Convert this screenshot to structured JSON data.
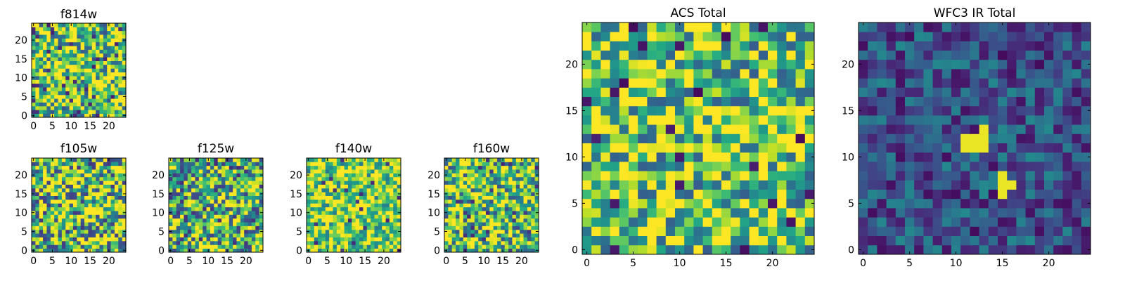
{
  "figure": {
    "colormap": "viridis"
  },
  "chart_data": [
    {
      "id": "f814w",
      "type": "heatmap",
      "title": "f814w",
      "grid": [
        25,
        25
      ],
      "xlim": [
        -0.5,
        24.5
      ],
      "ylim": [
        -0.5,
        24.5
      ],
      "xticks": [
        0,
        5,
        10,
        15,
        20
      ],
      "yticks": [
        0,
        5,
        10,
        15,
        20
      ],
      "xtick_labels": [
        "0",
        "5",
        "10",
        "15",
        "20"
      ],
      "ytick_labels": [
        "0",
        "5",
        "10",
        "15",
        "20"
      ],
      "pattern": {
        "seed": 11,
        "base": 0.75,
        "spread": 0.5,
        "dark_fraction": 0.05,
        "dark_value": 0.08,
        "hot_spots": []
      }
    },
    {
      "id": "f105w",
      "type": "heatmap",
      "title": "f105w",
      "grid": [
        25,
        25
      ],
      "xlim": [
        -0.5,
        24.5
      ],
      "ylim": [
        -0.5,
        24.5
      ],
      "xticks": [
        0,
        5,
        10,
        15,
        20
      ],
      "yticks": [
        0,
        5,
        10,
        15,
        20
      ],
      "xtick_labels": [
        "0",
        "5",
        "10",
        "15",
        "20"
      ],
      "ytick_labels": [
        "0",
        "5",
        "10",
        "15",
        "20"
      ],
      "pattern": {
        "seed": 23,
        "base": 0.72,
        "spread": 0.55,
        "dark_fraction": 0.04,
        "dark_value": 0.15,
        "hot_spots": []
      }
    },
    {
      "id": "f125w",
      "type": "heatmap",
      "title": "f125w",
      "grid": [
        25,
        25
      ],
      "xlim": [
        -0.5,
        24.5
      ],
      "ylim": [
        -0.5,
        24.5
      ],
      "xticks": [
        0,
        5,
        10,
        15,
        20
      ],
      "yticks": [
        0,
        5,
        10,
        15,
        20
      ],
      "xtick_labels": [
        "0",
        "5",
        "10",
        "15",
        "20"
      ],
      "ytick_labels": [
        "0",
        "5",
        "10",
        "15",
        "20"
      ],
      "pattern": {
        "seed": 37,
        "base": 0.62,
        "spread": 0.5,
        "dark_fraction": 0.04,
        "dark_value": 0.2,
        "hot_spots": []
      }
    },
    {
      "id": "f140w",
      "type": "heatmap",
      "title": "f140w",
      "grid": [
        25,
        25
      ],
      "xlim": [
        -0.5,
        24.5
      ],
      "ylim": [
        -0.5,
        24.5
      ],
      "xticks": [
        0,
        5,
        10,
        15,
        20
      ],
      "yticks": [
        0,
        5,
        10,
        15,
        20
      ],
      "xtick_labels": [
        "0",
        "5",
        "10",
        "15",
        "20"
      ],
      "ytick_labels": [
        "0",
        "5",
        "10",
        "15",
        "20"
      ],
      "pattern": {
        "seed": 41,
        "base": 0.8,
        "spread": 0.4,
        "dark_fraction": 0.03,
        "dark_value": 0.1,
        "hot_spots": []
      }
    },
    {
      "id": "f160w",
      "type": "heatmap",
      "title": "f160w",
      "grid": [
        25,
        25
      ],
      "xlim": [
        -0.5,
        24.5
      ],
      "ylim": [
        -0.5,
        24.5
      ],
      "xticks": [
        0,
        5,
        10,
        15,
        20
      ],
      "yticks": [
        0,
        5,
        10,
        15,
        20
      ],
      "xtick_labels": [
        "0",
        "5",
        "10",
        "15",
        "20"
      ],
      "ytick_labels": [
        "0",
        "5",
        "10",
        "15",
        "20"
      ],
      "pattern": {
        "seed": 53,
        "base": 0.74,
        "spread": 0.5,
        "dark_fraction": 0.05,
        "dark_value": 0.1,
        "hot_spots": []
      }
    },
    {
      "id": "acs_total",
      "type": "heatmap",
      "title": "ACS Total",
      "grid": [
        25,
        25
      ],
      "xlim": [
        -0.5,
        24.5
      ],
      "ylim": [
        -0.5,
        24.5
      ],
      "xticks": [
        0,
        5,
        10,
        15,
        20
      ],
      "yticks": [
        0,
        5,
        10,
        15,
        20
      ],
      "xtick_labels": [
        "0",
        "5",
        "10",
        "15",
        "20"
      ],
      "ytick_labels": [
        "0",
        "5",
        "10",
        "15",
        "20"
      ],
      "pattern": {
        "seed": 67,
        "base": 0.74,
        "spread": 0.45,
        "dark_fraction": 0.025,
        "dark_value": 0.02,
        "hot_spots": []
      }
    },
    {
      "id": "wfc3_ir_total",
      "type": "heatmap",
      "title": "WFC3 IR Total",
      "grid": [
        25,
        25
      ],
      "xlim": [
        -0.5,
        24.5
      ],
      "ylim": [
        -0.5,
        24.5
      ],
      "xticks": [
        0,
        5,
        10,
        15,
        20
      ],
      "yticks": [
        0,
        5,
        10,
        15,
        20
      ],
      "xtick_labels": [
        "0",
        "5",
        "10",
        "15",
        "20"
      ],
      "ytick_labels": [
        "0",
        "5",
        "10",
        "15",
        "20"
      ],
      "pattern": {
        "seed": 79,
        "base": 0.25,
        "spread": 0.22,
        "dark_fraction": 0.05,
        "dark_value": 0.03,
        "hot_spots": [
          {
            "col": 11,
            "row": 12,
            "value": 0.97
          },
          {
            "col": 12,
            "row": 12,
            "value": 0.97
          },
          {
            "col": 13,
            "row": 12,
            "value": 0.97
          },
          {
            "col": 11,
            "row": 11,
            "value": 0.97
          },
          {
            "col": 12,
            "row": 11,
            "value": 0.97
          },
          {
            "col": 13,
            "row": 11,
            "value": 0.97
          },
          {
            "col": 13,
            "row": 13,
            "value": 0.97
          },
          {
            "col": 15,
            "row": 8,
            "value": 0.97
          },
          {
            "col": 15,
            "row": 7,
            "value": 0.97
          },
          {
            "col": 16,
            "row": 7,
            "value": 0.97
          },
          {
            "col": 15,
            "row": 6,
            "value": 0.97
          }
        ]
      }
    }
  ]
}
